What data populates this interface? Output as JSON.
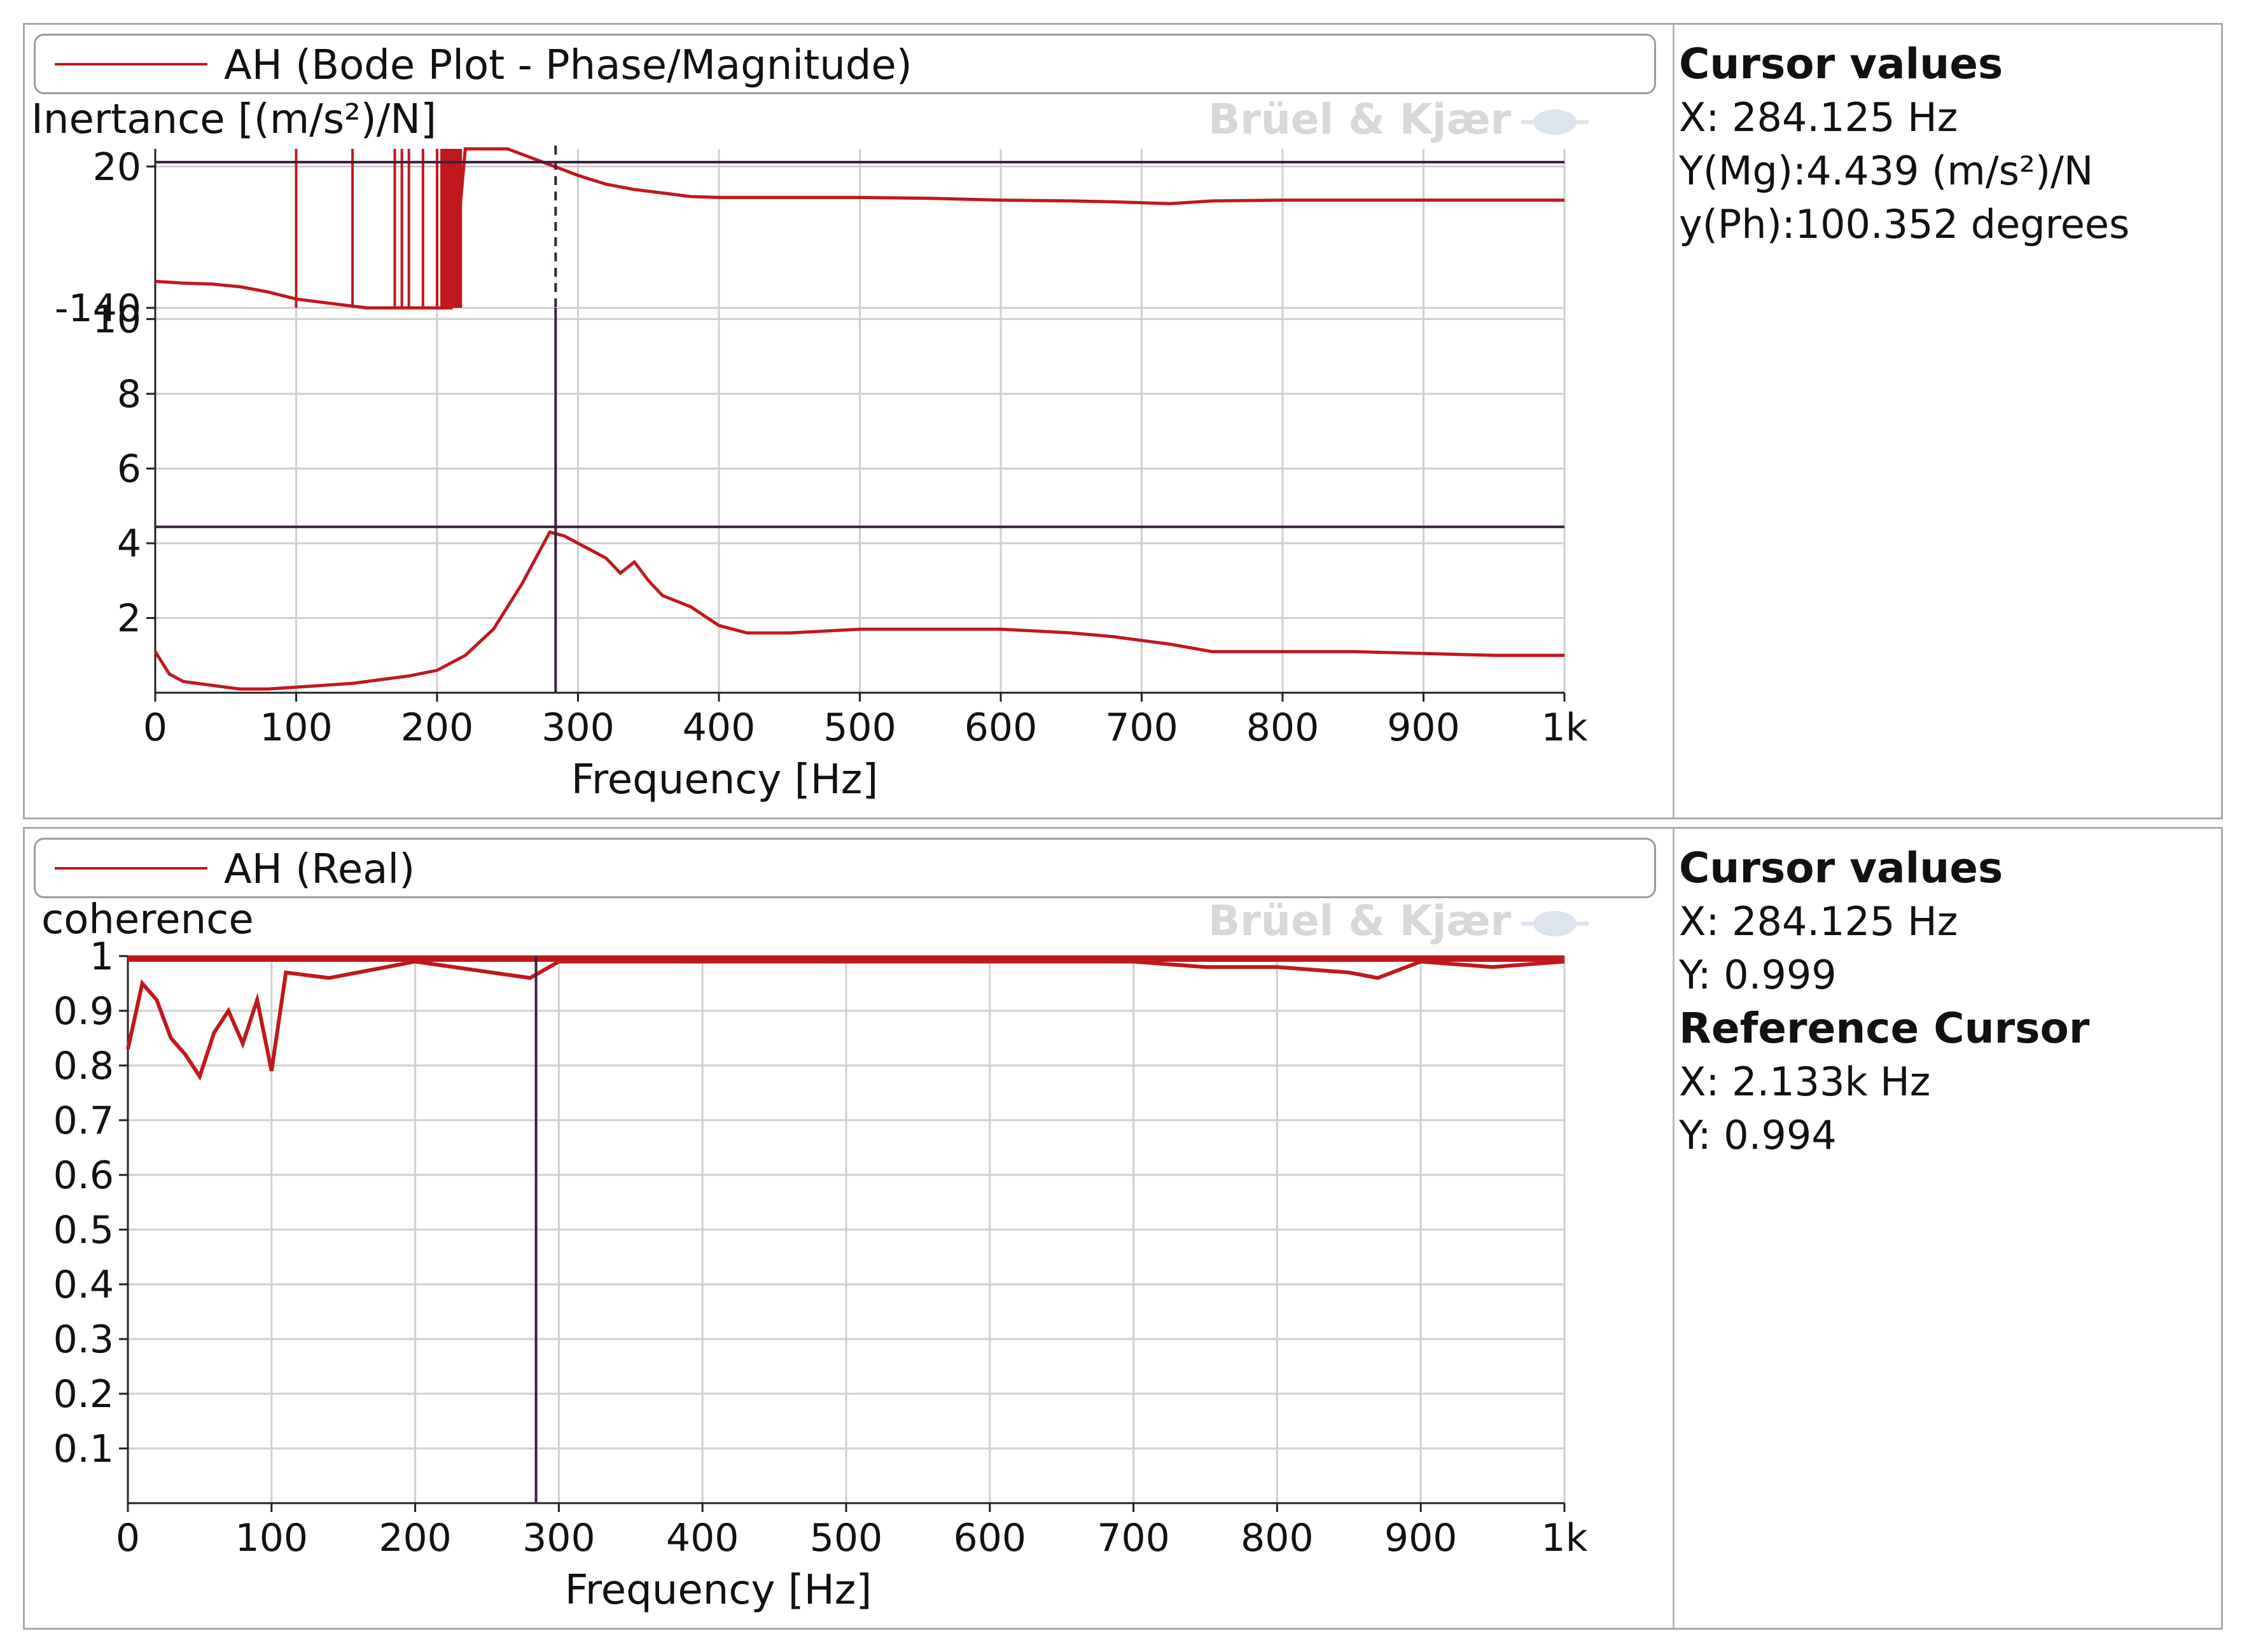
{
  "panels": [
    {
      "legend": "AH (Bode Plot - Phase/Magnitude)",
      "ylabel": "Inertance [(m/s²)/N]",
      "watermark": "Brüel & Kjær",
      "cursor": {
        "title": "Cursor values",
        "lines": [
          "X: 284.125 Hz",
          "Y(Mg):4.439 (m/s²)/N",
          "y(Ph):100.352 degrees"
        ]
      }
    },
    {
      "legend": "AH (Real)",
      "ylabel": "coherence",
      "watermark": "Brüel & Kjær",
      "cursor": {
        "title": "Cursor values",
        "lines": [
          "X: 284.125 Hz",
          "Y: 0.999"
        ],
        "ref_title": "Reference Cursor",
        "ref_lines": [
          "X: 2.133k Hz",
          "Y: 0.994"
        ]
      }
    }
  ],
  "colors": {
    "trace": "#c0181c",
    "cursor": "#3a1f3f",
    "grid": "#cfcfcf",
    "axis": "#222222"
  },
  "chart_data": [
    {
      "type": "line",
      "title": "AH (Bode Plot - Phase/Magnitude)",
      "subplot": "phase",
      "xlabel": "Frequency [Hz]",
      "x_ticks": [
        "0",
        "100",
        "200",
        "300",
        "400",
        "500",
        "600",
        "700",
        "800",
        "900",
        "1k"
      ],
      "xlim": [
        0,
        1000
      ],
      "y_ticks": [
        "20",
        "-140"
      ],
      "ylim": [
        -140,
        40
      ],
      "cursor_x": 284.125,
      "cursor_y": 100.352,
      "series": [
        {
          "x": [
            0,
            20,
            40,
            60,
            80,
            100,
            120,
            140,
            150,
            160,
            170,
            180,
            190,
            200,
            210,
            220,
            230,
            240,
            250,
            260,
            270,
            280,
            290,
            300,
            320,
            340,
            360,
            380,
            400,
            450,
            500,
            550,
            600,
            650,
            680,
            700,
            720,
            750,
            800,
            850,
            900,
            950,
            1000
          ],
          "y": [
            -110,
            -112,
            -113,
            -116,
            -122,
            -130,
            -134,
            -138,
            -140,
            -140,
            -140,
            -140,
            -140,
            -140,
            -140,
            40,
            40,
            40,
            40,
            34,
            28,
            22,
            16,
            10,
            0,
            -6,
            -10,
            -14,
            -15,
            -15,
            -15,
            -16,
            -18,
            -19,
            -20,
            -21,
            -22,
            -19,
            -18,
            -18,
            -18,
            -18,
            -18
          ]
        }
      ],
      "phase_spikes": [
        100,
        140,
        170,
        175,
        180,
        190,
        200,
        205,
        210,
        215
      ]
    },
    {
      "type": "line",
      "title": "AH (Bode Plot - Phase/Magnitude)",
      "subplot": "magnitude",
      "xlabel": "Frequency [Hz]",
      "ylabel": "Inertance [(m/s²)/N]",
      "x_ticks": [
        "0",
        "100",
        "200",
        "300",
        "400",
        "500",
        "600",
        "700",
        "800",
        "900",
        "1k"
      ],
      "xlim": [
        0,
        1000
      ],
      "y_ticks": [
        "2",
        "4",
        "6",
        "8",
        "10"
      ],
      "ylim": [
        0,
        10.3
      ],
      "cursor_x": 284.125,
      "cursor_y": 4.439,
      "series": [
        {
          "x": [
            0,
            10,
            20,
            40,
            60,
            80,
            100,
            120,
            140,
            160,
            180,
            200,
            220,
            240,
            260,
            280,
            290,
            300,
            320,
            330,
            340,
            350,
            360,
            380,
            400,
            420,
            450,
            500,
            550,
            600,
            650,
            680,
            700,
            720,
            750,
            800,
            850,
            900,
            950,
            1000
          ],
          "y": [
            1.1,
            0.5,
            0.3,
            0.2,
            0.1,
            0.1,
            0.15,
            0.2,
            0.25,
            0.35,
            0.45,
            0.6,
            1.0,
            1.7,
            2.9,
            4.3,
            4.2,
            4.0,
            3.6,
            3.2,
            3.5,
            3.0,
            2.6,
            2.3,
            1.8,
            1.6,
            1.6,
            1.7,
            1.7,
            1.7,
            1.6,
            1.5,
            1.4,
            1.3,
            1.1,
            1.1,
            1.1,
            1.05,
            1.0,
            1.0
          ]
        }
      ]
    },
    {
      "type": "line",
      "title": "AH (Real)",
      "xlabel": "Frequency [Hz]",
      "ylabel": "coherence",
      "x_ticks": [
        "0",
        "100",
        "200",
        "300",
        "400",
        "500",
        "600",
        "700",
        "800",
        "900",
        "1k"
      ],
      "xlim": [
        0,
        1000
      ],
      "y_ticks": [
        "0.1",
        "0.2",
        "0.3",
        "0.4",
        "0.5",
        "0.6",
        "0.7",
        "0.8",
        "0.9",
        "1"
      ],
      "ylim": [
        0,
        1.0
      ],
      "cursor_x": 284.125,
      "cursor_y": 0.999,
      "series": [
        {
          "x": [
            0,
            10,
            20,
            30,
            40,
            50,
            60,
            70,
            80,
            90,
            100,
            110,
            140,
            200,
            280,
            300,
            400,
            500,
            600,
            700,
            750,
            800,
            850,
            870,
            900,
            950,
            1000
          ],
          "y": [
            0.83,
            0.95,
            0.92,
            0.85,
            0.82,
            0.78,
            0.86,
            0.9,
            0.84,
            0.92,
            0.79,
            0.97,
            0.96,
            0.99,
            0.96,
            0.99,
            0.99,
            0.99,
            0.99,
            0.99,
            0.98,
            0.98,
            0.97,
            0.96,
            0.99,
            0.98,
            0.99
          ]
        }
      ]
    }
  ]
}
